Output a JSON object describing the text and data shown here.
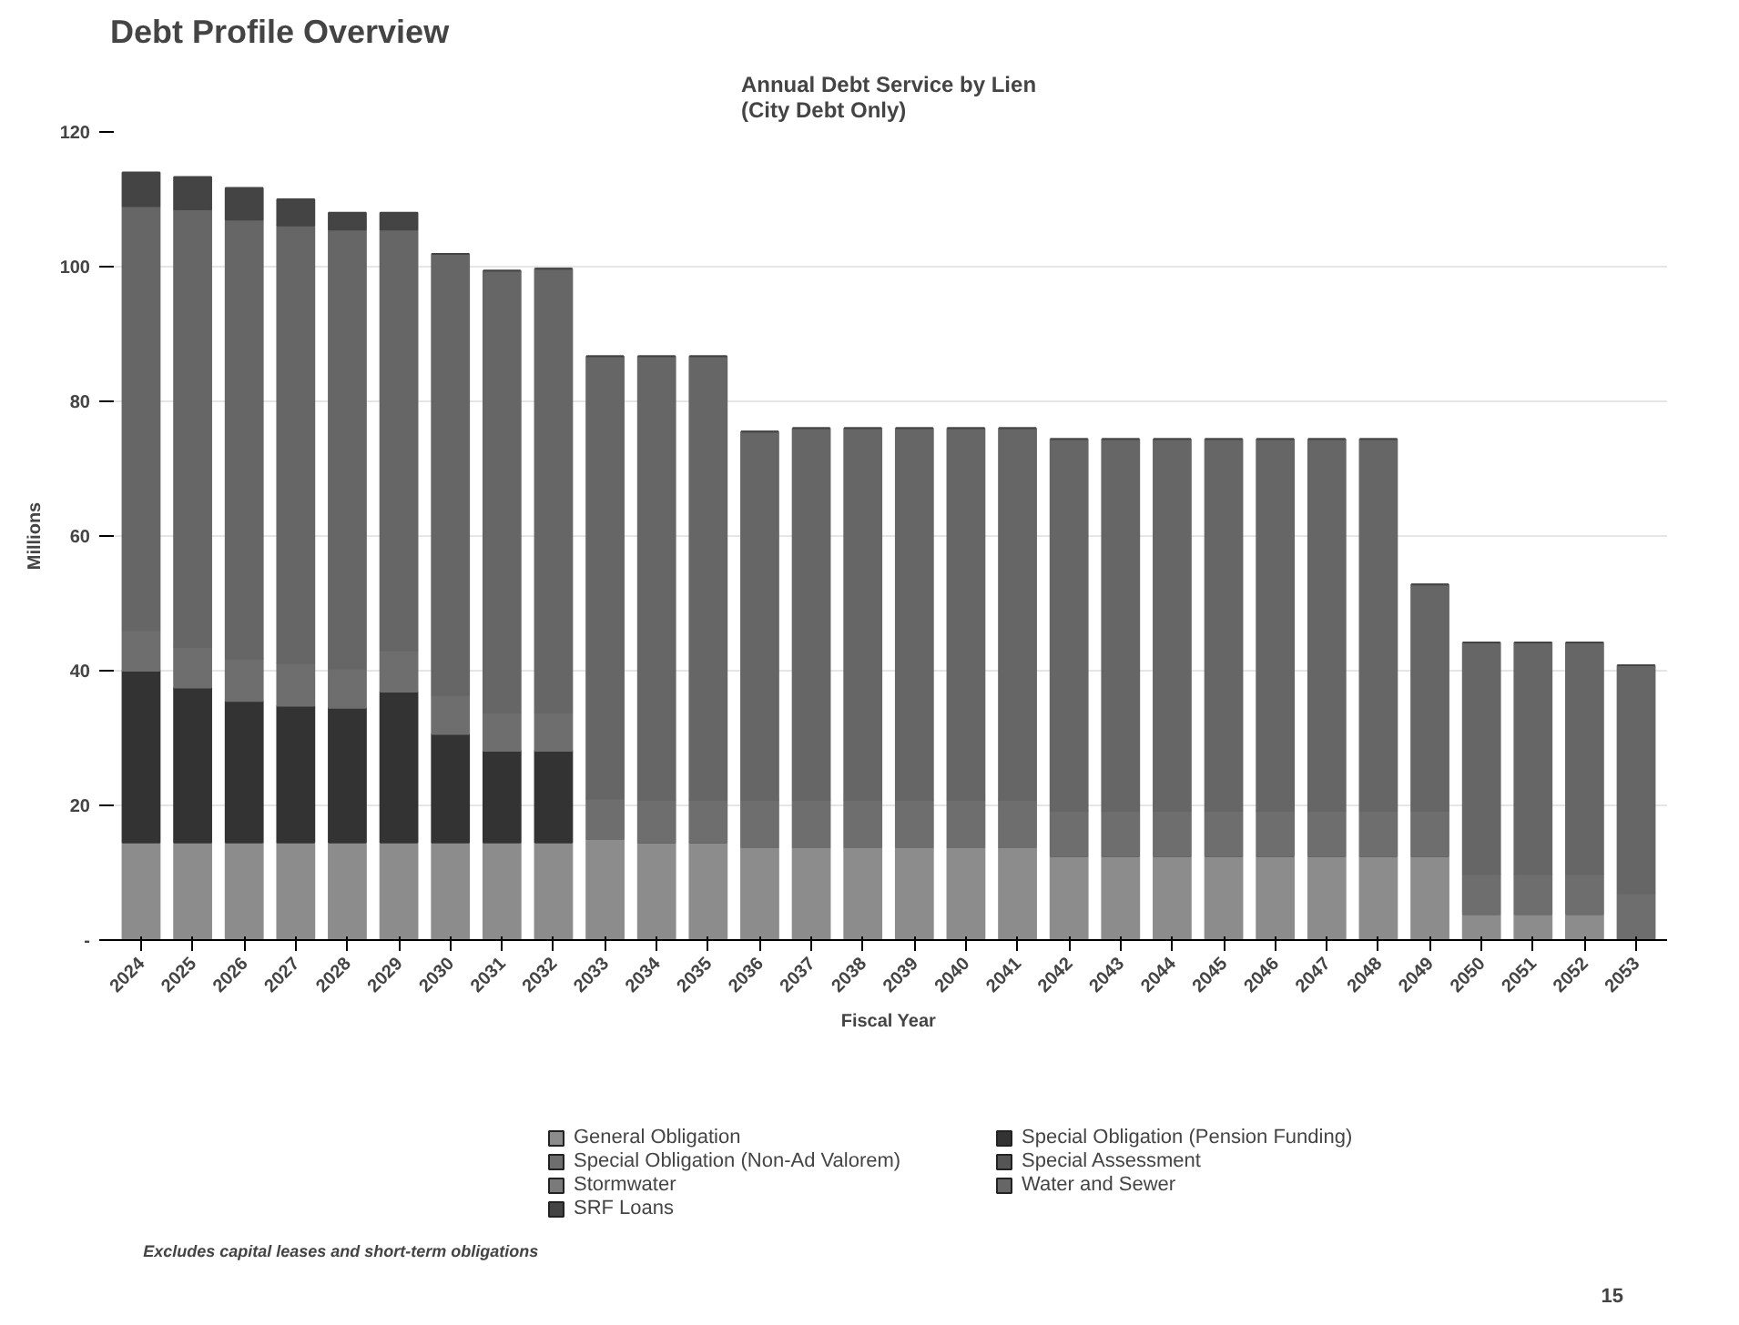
{
  "chart_data": {
    "type": "bar",
    "stacked": true,
    "title": "Debt Profile Overview",
    "subtitle": "Annual Debt Service by Lien\n(City Debt Only)",
    "xlabel": "Fiscal Year",
    "ylabel": "Millions",
    "categories": [
      "2024",
      "2025",
      "2026",
      "2027",
      "2028",
      "2029",
      "2030",
      "2031",
      "2032",
      "2033",
      "2034",
      "2035",
      "2036",
      "2037",
      "2038",
      "2039",
      "2040",
      "2041",
      "2042",
      "2043",
      "2044",
      "2045",
      "2046",
      "2047",
      "2048",
      "2049",
      "2050",
      "2051",
      "2052",
      "2053"
    ],
    "series": [
      {
        "name": "General Obligation",
        "color": "#8c8c8c",
        "values": [
          14.5,
          14.5,
          14.5,
          14.5,
          14.5,
          14.5,
          14.5,
          14.5,
          14.5,
          15,
          14.5,
          14.5,
          13.8,
          13.8,
          13.8,
          13.8,
          13.8,
          13.8,
          12.5,
          12.5,
          12.5,
          12.5,
          12.5,
          12.5,
          12.5,
          12.5,
          3.9,
          3.9,
          3.9,
          0
        ]
      },
      {
        "name": "Special Obligation (Pension Funding)",
        "color": "#333333",
        "values": [
          25.5,
          23,
          21,
          20.3,
          20,
          22.4,
          16.1,
          13.6,
          13.6,
          0,
          0,
          0,
          0,
          0,
          0,
          0,
          0,
          0,
          0,
          0,
          0,
          0,
          0,
          0,
          0,
          0,
          0,
          0,
          0,
          0
        ]
      },
      {
        "name": "Special Obligation (Non-Ad Valorem)",
        "color": "#6e6e6e",
        "values": [
          6,
          6,
          6.3,
          6.3,
          5.8,
          6.1,
          5.8,
          5.7,
          5.7,
          6,
          6.3,
          6.3,
          7,
          7,
          7,
          7,
          7,
          7,
          6.7,
          6.7,
          6.7,
          6.7,
          6.7,
          6.7,
          6.7,
          6.7,
          5.9,
          5.9,
          5.9,
          7
        ]
      },
      {
        "name": "Special Assessment",
        "color": "#555555",
        "values": [
          0,
          0,
          0,
          0,
          0,
          0,
          0,
          0,
          0,
          0,
          0,
          0,
          0,
          0,
          0,
          0,
          0,
          0,
          0,
          0,
          0,
          0,
          0,
          0,
          0,
          0,
          0,
          0,
          0,
          0
        ]
      },
      {
        "name": "Stormwater",
        "color": "#7a7a7a",
        "values": [
          0,
          0,
          0,
          0,
          0,
          0,
          0,
          0,
          0,
          0,
          0,
          0,
          0,
          0,
          0,
          0,
          0,
          0,
          0,
          0,
          0,
          0,
          0,
          0,
          0,
          0,
          0,
          0,
          0,
          0
        ]
      },
      {
        "name": "Water and Sewer",
        "color": "#666666",
        "values": [
          63,
          65,
          65.2,
          65,
          65.2,
          62.5,
          65.5,
          65.6,
          65.9,
          65.7,
          65.9,
          65.9,
          54.7,
          55.2,
          55.2,
          55.2,
          55.2,
          55.2,
          55.2,
          55.2,
          55.2,
          55.2,
          55.2,
          55.2,
          55.2,
          33.6,
          34.4,
          34.4,
          34.4,
          33.8
        ]
      },
      {
        "name": "SRF Loans",
        "color": "#444444",
        "values": [
          5,
          4.8,
          4.7,
          3.9,
          2.5,
          2.5,
          0,
          0,
          0,
          0,
          0,
          0,
          0,
          0,
          0,
          0,
          0,
          0,
          0,
          0,
          0,
          0,
          0,
          0,
          0,
          0,
          0,
          0,
          0,
          0
        ]
      }
    ],
    "ylim": [
      0,
      120
    ],
    "yticks": [
      {
        "value": 0,
        "label": "-"
      },
      20,
      40,
      60,
      80,
      100,
      120
    ],
    "grid": "y",
    "legend": "bottom",
    "annotations": [
      "Excludes capital leases and short-term obligations",
      "15"
    ]
  }
}
